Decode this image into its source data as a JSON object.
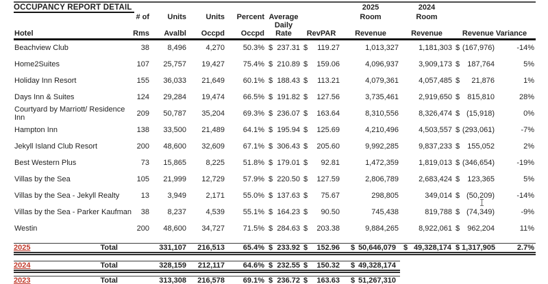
{
  "title": "OCCUPANCY REPORT DETAIL",
  "currency_symbol": "$",
  "colors": {
    "year_label_red": "#c0392b",
    "text": "#1f1f1f",
    "rule": "#141414"
  },
  "columns": {
    "hotel": "Hotel",
    "rooms": [
      "# of",
      "Rms"
    ],
    "units_available": [
      "Units",
      "Avalbl"
    ],
    "units_occupied": [
      "Units",
      "Occpd"
    ],
    "percent_occupied": [
      "Percent",
      "Occpd"
    ],
    "avg_daily_rate": [
      "Average",
      "Daily Rate"
    ],
    "revpar": "RevPAR",
    "revenue_2025": [
      "2025",
      "Room",
      "Revenue"
    ],
    "revenue_2024": [
      "2024",
      "Room",
      "Revenue"
    ],
    "revenue_variance": "Revenue Variance"
  },
  "rows": [
    {
      "hotel": "Beachview Club",
      "rooms": "38",
      "units_available": "8,496",
      "units_occupied": "4,270",
      "percent_occupied": "50.3%",
      "avg_daily_rate": "237.31",
      "revpar": "119.27",
      "revenue_2025": "1,013,327",
      "revenue_2024": "1,181,303",
      "variance": "(167,976)",
      "variance_pct": "-14%"
    },
    {
      "hotel": "Home2Suites",
      "rooms": "107",
      "units_available": "25,757",
      "units_occupied": "19,427",
      "percent_occupied": "75.4%",
      "avg_daily_rate": "210.89",
      "revpar": "159.06",
      "revenue_2025": "4,096,937",
      "revenue_2024": "3,909,173",
      "variance": "187,764",
      "variance_pct": "5%"
    },
    {
      "hotel": "Holiday Inn Resort",
      "rooms": "155",
      "units_available": "36,033",
      "units_occupied": "21,649",
      "percent_occupied": "60.1%",
      "avg_daily_rate": "188.43",
      "revpar": "113.21",
      "revenue_2025": "4,079,361",
      "revenue_2024": "4,057,485",
      "variance": "21,876",
      "variance_pct": "1%"
    },
    {
      "hotel": "Days Inn & Suites",
      "rooms": "124",
      "units_available": "29,284",
      "units_occupied": "19,474",
      "percent_occupied": "66.5%",
      "avg_daily_rate": "191.82",
      "revpar": "127.56",
      "revenue_2025": "3,735,461",
      "revenue_2024": "2,919,650",
      "variance": "815,810",
      "variance_pct": "28%"
    },
    {
      "hotel": "Courtyard by Marriott/ Residence Inn",
      "rooms": "209",
      "units_available": "50,787",
      "units_occupied": "35,204",
      "percent_occupied": "69.3%",
      "avg_daily_rate": "236.07",
      "revpar": "163.64",
      "revenue_2025": "8,310,556",
      "revenue_2024": "8,326,474",
      "variance": "(15,918)",
      "variance_pct": "0%"
    },
    {
      "hotel": "Hampton Inn",
      "rooms": "138",
      "units_available": "33,500",
      "units_occupied": "21,489",
      "percent_occupied": "64.1%",
      "avg_daily_rate": "195.94",
      "revpar": "125.69",
      "revenue_2025": "4,210,496",
      "revenue_2024": "4,503,557",
      "variance": "(293,061)",
      "variance_pct": "-7%"
    },
    {
      "hotel": "Jekyll Island Club Resort",
      "rooms": "200",
      "units_available": "48,600",
      "units_occupied": "32,609",
      "percent_occupied": "67.1%",
      "avg_daily_rate": "306.43",
      "revpar": "205.60",
      "revenue_2025": "9,992,285",
      "revenue_2024": "9,837,233",
      "variance": "155,052",
      "variance_pct": "2%"
    },
    {
      "hotel": "Best Western Plus",
      "rooms": "73",
      "units_available": "15,865",
      "units_occupied": "8,225",
      "percent_occupied": "51.8%",
      "avg_daily_rate": "179.01",
      "revpar": "92.81",
      "revenue_2025": "1,472,359",
      "revenue_2024": "1,819,013",
      "variance": "(346,654)",
      "variance_pct": "-19%"
    },
    {
      "hotel": "Villas by the Sea",
      "rooms": "105",
      "units_available": "21,999",
      "units_occupied": "12,729",
      "percent_occupied": "57.9%",
      "avg_daily_rate": "220.50",
      "revpar": "127.59",
      "revenue_2025": "2,806,789",
      "revenue_2024": "2,683,424",
      "variance": "123,365",
      "variance_pct": "5%"
    },
    {
      "hotel": "Villas by the Sea - Jekyll Realty",
      "rooms": "13",
      "units_available": "3,949",
      "units_occupied": "2,171",
      "percent_occupied": "55.0%",
      "avg_daily_rate": "137.63",
      "revpar": "75.67",
      "revenue_2025": "298,805",
      "revenue_2024": "349,014",
      "variance": "(50,209)",
      "variance_pct": "-14%"
    },
    {
      "hotel": "Villas by the Sea - Parker Kaufman",
      "rooms": "38",
      "units_available": "8,237",
      "units_occupied": "4,539",
      "percent_occupied": "55.1%",
      "avg_daily_rate": "164.23",
      "revpar": "90.50",
      "revenue_2025": "745,438",
      "revenue_2024": "819,788",
      "variance": "(74,349)",
      "variance_pct": "-9%"
    },
    {
      "hotel": "Westin",
      "rooms": "200",
      "units_available": "48,600",
      "units_occupied": "34,727",
      "percent_occupied": "71.5%",
      "avg_daily_rate": "284.63",
      "revpar": "203.38",
      "revenue_2025": "9,884,265",
      "revenue_2024": "8,922,061",
      "variance": "962,204",
      "variance_pct": "11%"
    }
  ],
  "totals": {
    "y2025": {
      "year": "2025",
      "label": "Total",
      "units_available": "331,107",
      "units_occupied": "216,513",
      "percent_occupied": "65.4%",
      "avg_daily_rate": "233.92",
      "revpar": "152.96",
      "revenue_2025": "50,646,079",
      "revenue_2024": "49,328,174",
      "variance": "1,317,905",
      "variance_pct": "2.7%"
    },
    "y2024": {
      "year": "2024",
      "label": "Total",
      "units_available": "328,159",
      "units_occupied": "212,117",
      "percent_occupied": "64.6%",
      "avg_daily_rate": "232.55",
      "revpar": "150.32",
      "room_revenue": "49,328,174"
    },
    "y2023": {
      "year": "2023",
      "label": "Total",
      "units_available": "313,308",
      "units_occupied": "216,578",
      "percent_occupied": "69.1%",
      "avg_daily_rate": "236.72",
      "revpar": "163.63",
      "room_revenue": "51,267,310"
    }
  }
}
